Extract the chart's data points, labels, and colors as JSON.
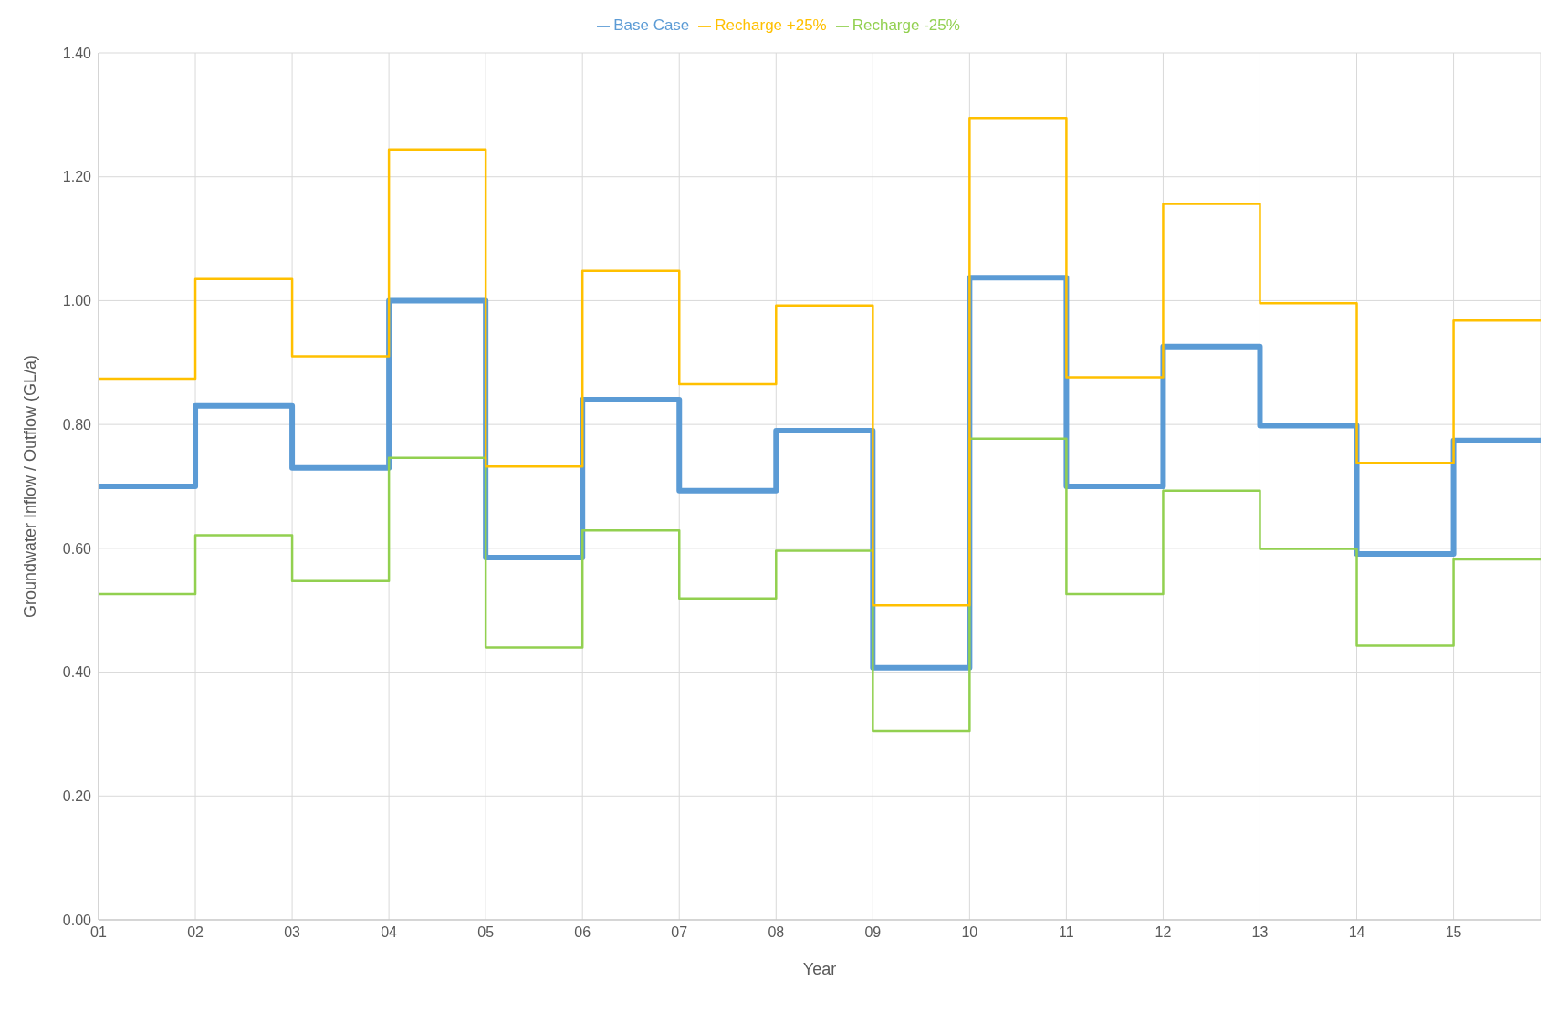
{
  "chart_data": {
    "type": "step",
    "xlabel": "Year",
    "ylabel": "Groundwater Inflow / Outflow (GL/a)",
    "categories": [
      "01",
      "02",
      "03",
      "04",
      "05",
      "06",
      "07",
      "08",
      "09",
      "10",
      "11",
      "12",
      "13",
      "14",
      "15"
    ],
    "series": [
      {
        "name": "Base Case",
        "color": "#5b9bd5",
        "values": [
          0.7,
          0.83,
          0.73,
          1.0,
          0.585,
          0.84,
          0.693,
          0.79,
          0.407,
          1.037,
          0.7,
          0.926,
          0.798,
          0.591,
          0.774
        ]
      },
      {
        "name": "Recharge -25%",
        "color": "#92d050",
        "values": [
          0.526,
          0.621,
          0.547,
          0.746,
          0.44,
          0.629,
          0.519,
          0.596,
          0.305,
          0.777,
          0.526,
          0.693,
          0.599,
          0.443,
          0.582
        ]
      },
      {
        "name": "Recharge +25%",
        "color": "#ffc000",
        "values": [
          0.874,
          1.035,
          0.91,
          1.244,
          0.732,
          1.048,
          0.865,
          0.992,
          0.508,
          1.295,
          0.876,
          1.156,
          0.996,
          0.738,
          0.968
        ]
      }
    ],
    "ylim": [
      0,
      1.4
    ],
    "yticks": [
      {
        "value": 0,
        "label": "0.00"
      },
      {
        "value": 0.2,
        "label": "0.20"
      },
      {
        "value": 0.4,
        "label": "0.40"
      },
      {
        "value": 0.6,
        "label": "0.60"
      },
      {
        "value": 0.8,
        "label": "0.80"
      },
      {
        "value": 1.0,
        "label": "1.00"
      },
      {
        "value": 1.2,
        "label": "1.20"
      },
      {
        "value": 1.4,
        "label": "1.40"
      }
    ],
    "grid": true,
    "legend": "top"
  }
}
